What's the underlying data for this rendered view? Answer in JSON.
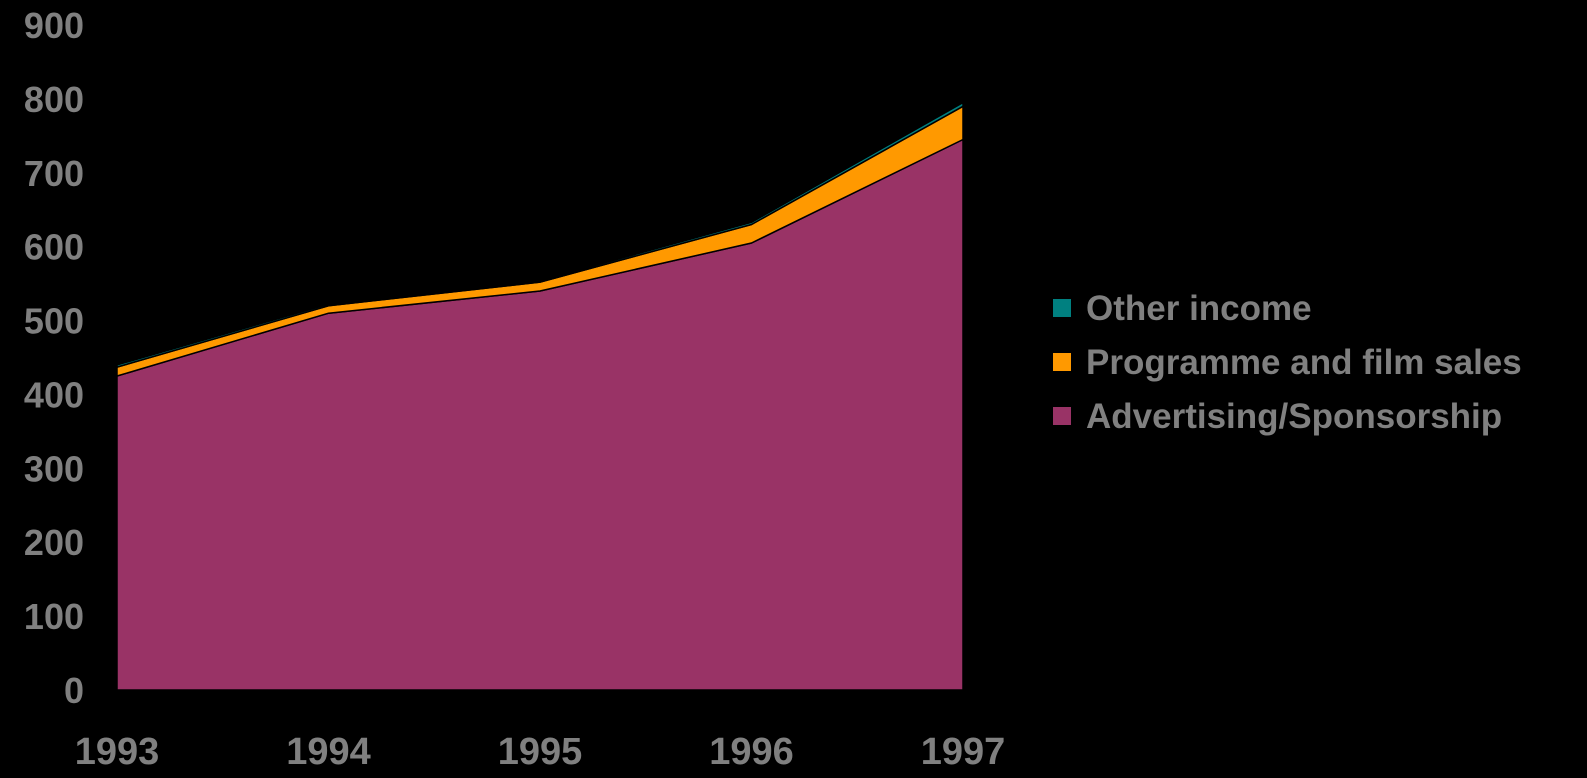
{
  "chart_data": {
    "type": "area",
    "stacked": true,
    "categories": [
      "1993",
      "1994",
      "1995",
      "1996",
      "1997"
    ],
    "series": [
      {
        "name": "Advertising/Sponsorship",
        "color": "#993366",
        "values": [
          425,
          510,
          540,
          605,
          745
        ]
      },
      {
        "name": "Programme and film sales",
        "color": "#FF9900",
        "values": [
          12,
          10,
          12,
          25,
          45
        ]
      },
      {
        "name": "Other income",
        "color": "#008080",
        "values": [
          3,
          2,
          2,
          3,
          5
        ]
      }
    ],
    "ylim": [
      0,
      900
    ],
    "yticks": [
      "0",
      "100",
      "200",
      "300",
      "400",
      "500",
      "600",
      "700",
      "800",
      "900"
    ],
    "grid": false,
    "legend_position": "right",
    "legend_order": [
      "Other income",
      "Programme and film sales",
      "Advertising/Sponsorship"
    ],
    "title": "",
    "xlabel": "",
    "ylabel": ""
  }
}
